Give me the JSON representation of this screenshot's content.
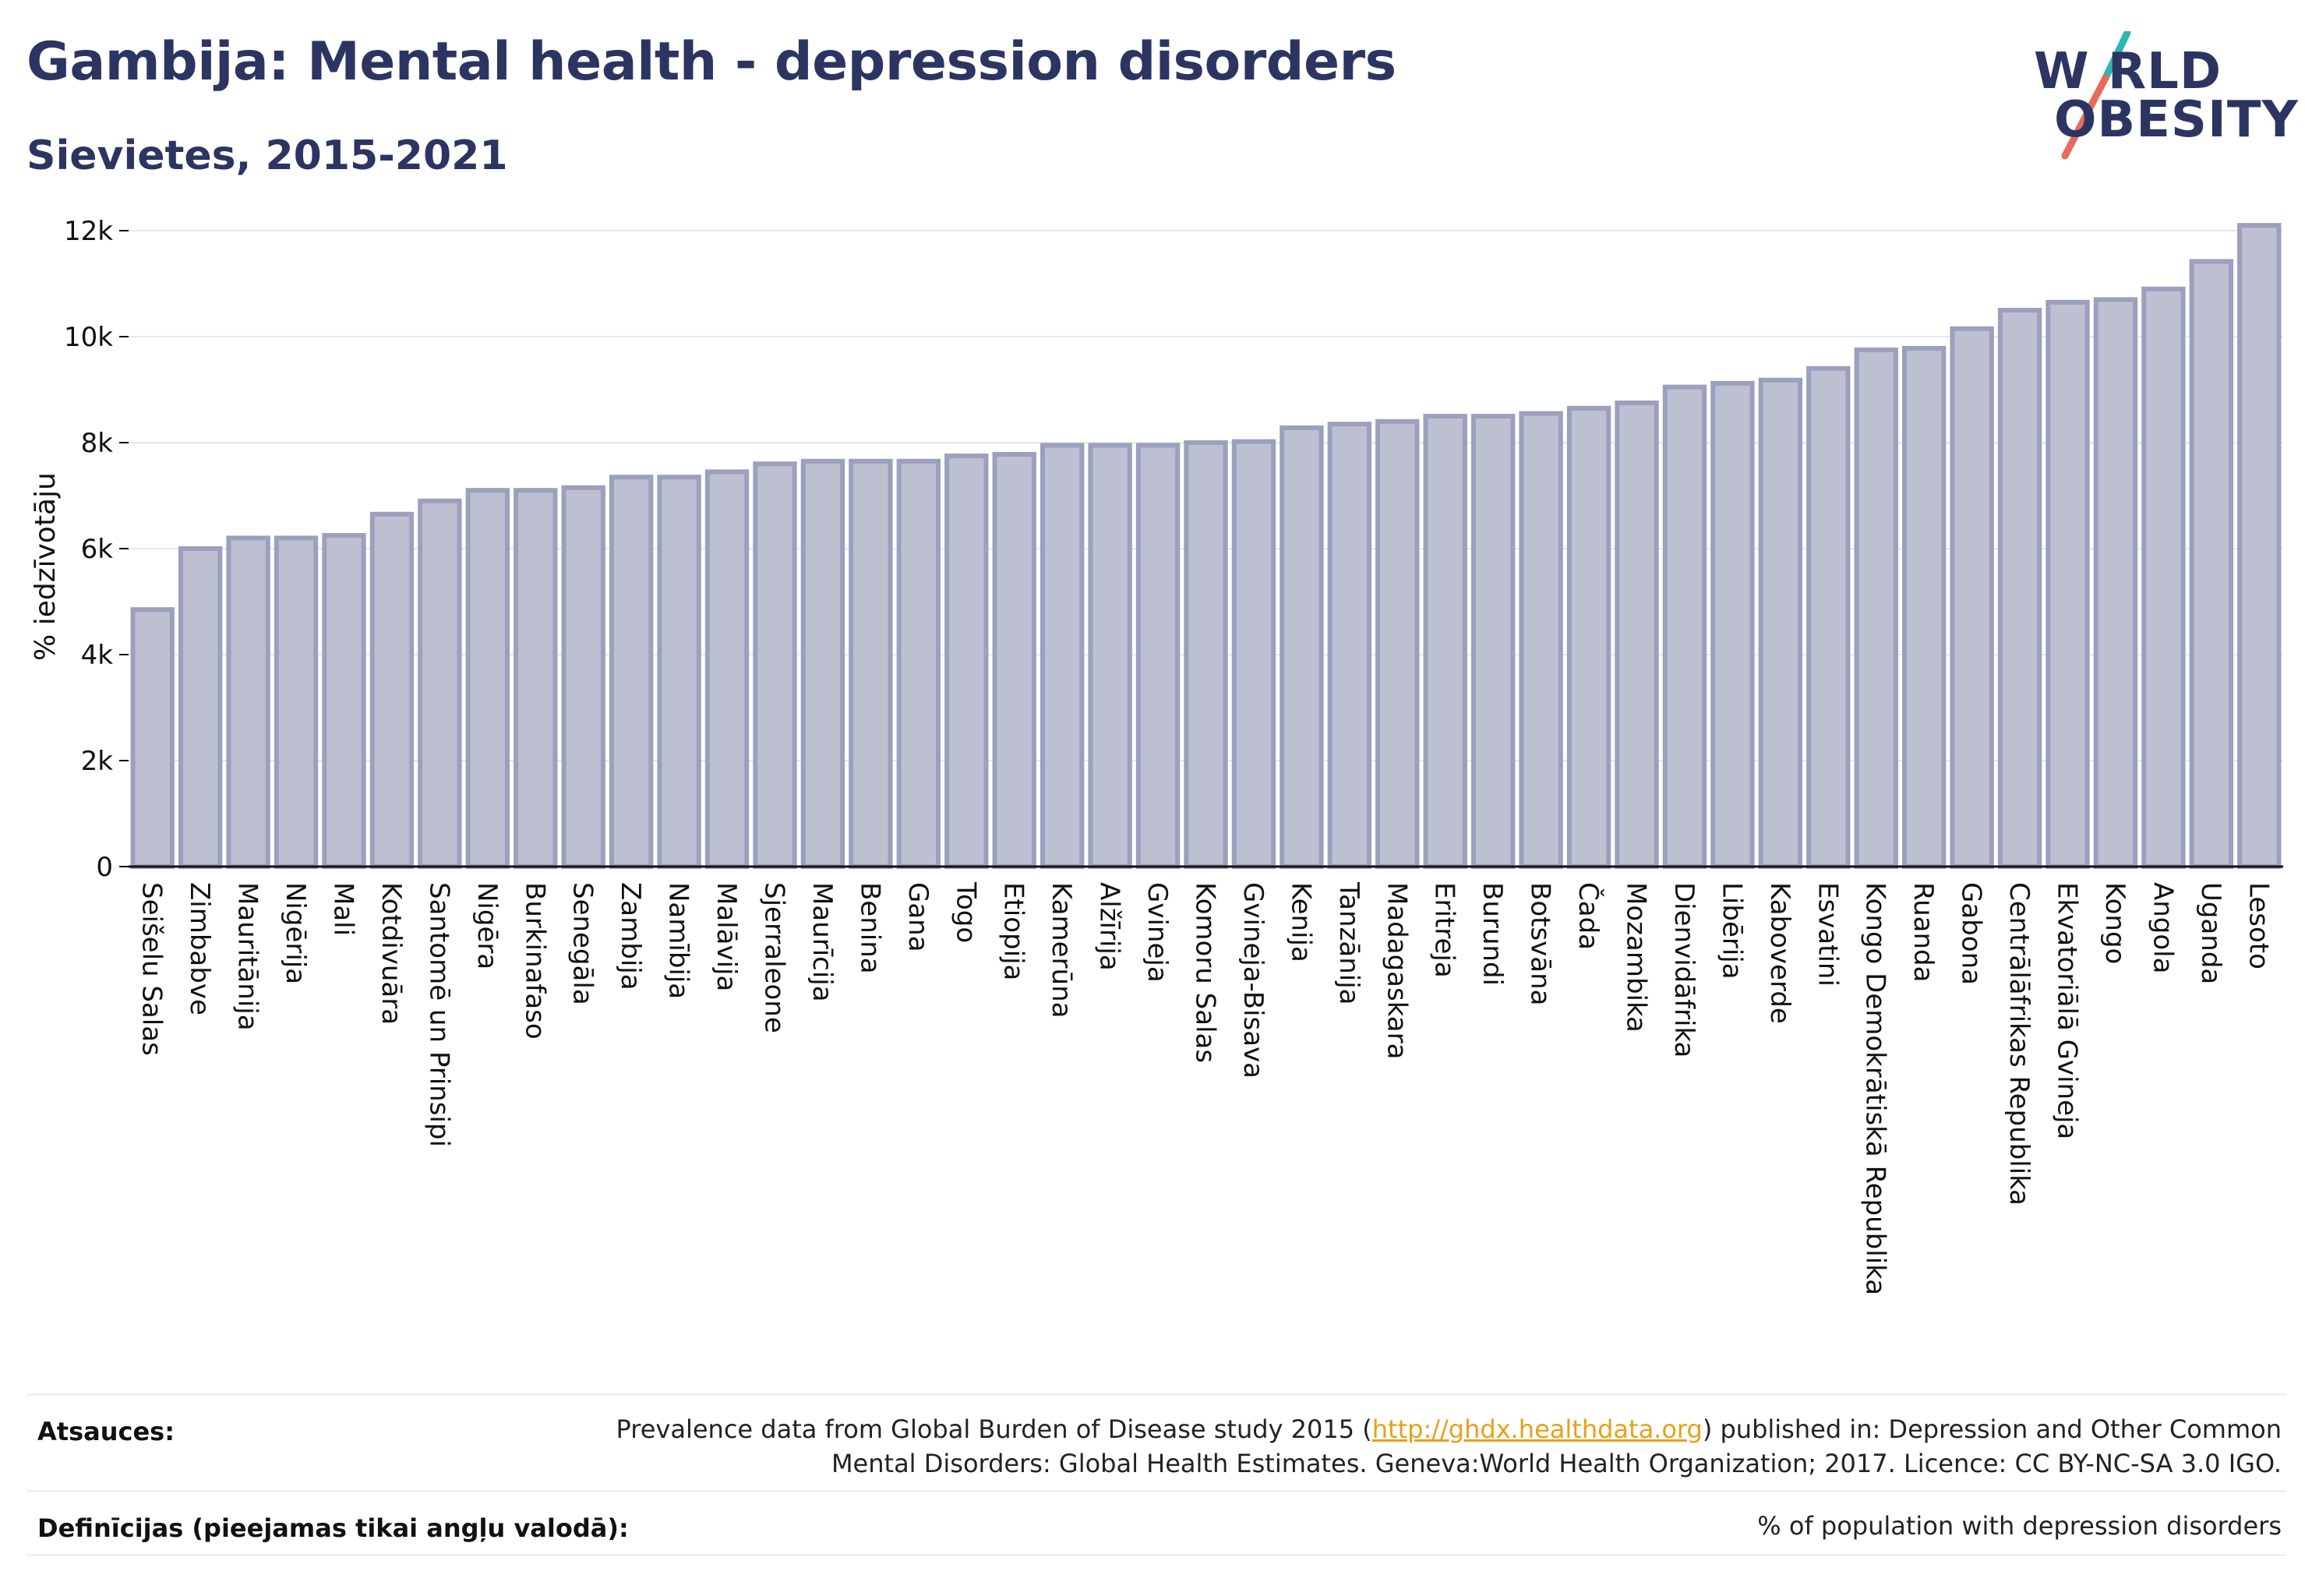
{
  "header": {
    "title": "Gambija: Mental health - depression disorders",
    "subtitle": "Sievietes, 2015-2021"
  },
  "logo": {
    "line1": "W RLD",
    "line2": "OBESITY",
    "colors": {
      "text": "#2c3561",
      "slash_teal": "#2bb7b3",
      "slash_coral": "#e96a5a"
    }
  },
  "chart_data": {
    "type": "bar",
    "title": "",
    "xlabel": "",
    "ylabel": "% iedzīvotāju",
    "ylim": [
      0,
      12500
    ],
    "yticks": [
      0,
      2000,
      4000,
      6000,
      8000,
      10000,
      12000
    ],
    "ytick_labels": [
      "0",
      "2k",
      "4k",
      "6k",
      "8k",
      "10k",
      "12k"
    ],
    "grid": true,
    "bar_color": "#bcc0d0",
    "bar_edge_color": "#9aa0bd",
    "categories": [
      "Seišelu Salas",
      "Zimbabve",
      "Mauritānija",
      "Nigērija",
      "Mali",
      "Kotdivuāra",
      "Santomē un Prinsipi",
      "Nigēra",
      "Burkinafaso",
      "Senegāla",
      "Zambija",
      "Namībija",
      "Malāvija",
      "Sjerraleone",
      "Maurīcija",
      "Benina",
      "Gana",
      "Togo",
      "Etiopija",
      "Kamerūna",
      "Alžīrija",
      "Gvineja",
      "Komoru Salas",
      "Gvineja-Bisava",
      "Kenija",
      "Tanzānija",
      "Madagaskara",
      "Eritreja",
      "Burundi",
      "Botsvāna",
      "Čada",
      "Mozambika",
      "Dienvidāfrika",
      "Libērija",
      "Kaboverde",
      "Esvatini",
      "Kongo Demokrātiskā Republika",
      "Ruanda",
      "Gabona",
      "Centrālāfrikas Republika",
      "Ekvatoriālā Gvineja",
      "Kongo",
      "Angola",
      "Uganda",
      "Lesoto"
    ],
    "values": [
      4850,
      6000,
      6200,
      6200,
      6250,
      6650,
      6900,
      7100,
      7100,
      7150,
      7350,
      7350,
      7450,
      7600,
      7650,
      7650,
      7650,
      7750,
      7780,
      7950,
      7950,
      7950,
      8000,
      8020,
      8280,
      8350,
      8400,
      8500,
      8500,
      8550,
      8650,
      8750,
      9050,
      9120,
      9180,
      9400,
      9750,
      9780,
      10150,
      10500,
      10650,
      10700,
      10900,
      11420,
      12100
    ]
  },
  "footer": {
    "sources_label": "Atsauces:",
    "sources_text_1": "Prevalence data from Global Burden of Disease study 2015 (",
    "sources_link": "http://ghdx.healthdata.org",
    "sources_text_2": ") published in: Depression and Other Common",
    "sources_text_3": "Mental Disorders: Global Health Estimates. Geneva:World Health Organization; 2017. Licence: CC BY-NC-SA 3.0 IGO.",
    "definitions_label": "Definīcijas (pieejamas tikai angļu valodā):",
    "definitions_text": "% of population with depression disorders"
  }
}
